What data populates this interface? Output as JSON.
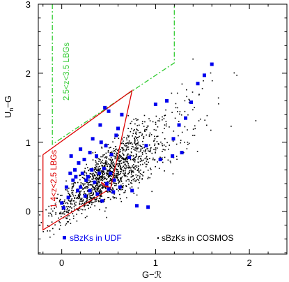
{
  "chart_data": {
    "type": "scatter",
    "xlabel": "G−ℛ",
    "ylabel_main": "U",
    "ylabel_sub": "n",
    "ylabel_rest": "−G",
    "xlim": [
      -0.25,
      2.4
    ],
    "ylim": [
      -0.62,
      3.0
    ],
    "x_ticks": [
      {
        "value": 0,
        "label": "0"
      },
      {
        "value": 1,
        "label": "1"
      },
      {
        "value": 2,
        "label": "2"
      }
    ],
    "y_ticks": [
      {
        "value": 0,
        "label": "0"
      },
      {
        "value": 1,
        "label": "1"
      },
      {
        "value": 2,
        "label": "2"
      },
      {
        "value": 3,
        "label": "3"
      }
    ],
    "grid": false,
    "series": [
      {
        "name": "sBzKs in COSMOS",
        "color": "#000000",
        "marker": "dot",
        "distribution": {
          "count": 1400,
          "ridge_slope": 0.95,
          "ridge_intercept": 0.05,
          "x_center": 0.5,
          "x_spread": 0.28,
          "y_scatter": 0.22
        }
      },
      {
        "name": "sBzKs in UDF",
        "color": "#0000ee",
        "marker": "square",
        "points": [
          [
            0.0,
            0.12
          ],
          [
            0.02,
            0.05
          ],
          [
            0.05,
            0.35
          ],
          [
            0.07,
            0.2
          ],
          [
            0.09,
            0.55
          ],
          [
            0.1,
            0.8
          ],
          [
            0.12,
            0.45
          ],
          [
            0.14,
            0.6
          ],
          [
            0.15,
            0.5
          ],
          [
            0.17,
            0.3
          ],
          [
            0.18,
            0.7
          ],
          [
            0.2,
            0.9
          ],
          [
            0.2,
            0.35
          ],
          [
            0.22,
            0.55
          ],
          [
            0.24,
            0.75
          ],
          [
            0.25,
            0.22
          ],
          [
            0.26,
            0.45
          ],
          [
            0.28,
            0.5
          ],
          [
            0.3,
            0.3
          ],
          [
            0.3,
            0.85
          ],
          [
            0.32,
            0.6
          ],
          [
            0.33,
            1.05
          ],
          [
            0.35,
            0.42
          ],
          [
            0.37,
            0.8
          ],
          [
            0.38,
            0.25
          ],
          [
            0.4,
            0.55
          ],
          [
            0.41,
            1.25
          ],
          [
            0.42,
            1.0
          ],
          [
            0.43,
            0.15
          ],
          [
            0.45,
            0.62
          ],
          [
            0.46,
            1.5
          ],
          [
            0.47,
            0.95
          ],
          [
            0.48,
            0.4
          ],
          [
            0.5,
            1.45
          ],
          [
            0.5,
            0.32
          ],
          [
            0.52,
            0.55
          ],
          [
            0.53,
            0.82
          ],
          [
            0.55,
            0.28
          ],
          [
            0.56,
            0.45
          ],
          [
            0.58,
            1.1
          ],
          [
            0.6,
            1.2
          ],
          [
            0.62,
            0.35
          ],
          [
            0.64,
            1.4
          ],
          [
            0.72,
            0.78
          ],
          [
            0.75,
            0.3
          ],
          [
            0.8,
            0.08
          ],
          [
            0.9,
            0.95
          ],
          [
            0.92,
            0.06
          ],
          [
            1.0,
            1.55
          ],
          [
            1.05,
            0.75
          ],
          [
            1.12,
            1.6
          ],
          [
            1.18,
            0.8
          ],
          [
            1.19,
            1.05
          ],
          [
            1.25,
            1.25
          ],
          [
            1.28,
            0.85
          ],
          [
            1.32,
            1.35
          ],
          [
            1.38,
            1.58
          ],
          [
            1.45,
            1.85
          ],
          [
            1.52,
            1.97
          ],
          [
            1.6,
            2.13
          ]
        ]
      }
    ],
    "regions": [
      {
        "label": "2.5<z<3.5 LBGs",
        "color": "#33cc33",
        "style": "dash-dot",
        "path": [
          [
            -0.1,
            3.0
          ],
          [
            -0.1,
            0.97
          ],
          [
            1.0,
            1.97
          ],
          [
            1.2,
            2.15
          ],
          [
            1.2,
            3.0
          ]
        ]
      },
      {
        "label": "1.4<z<2.5 LBGs",
        "color": "#dd0000",
        "style": "solid",
        "path": [
          [
            -0.2,
            0.82
          ],
          [
            0.75,
            1.75
          ],
          [
            0.52,
            0.33
          ],
          [
            -0.2,
            -0.27
          ],
          [
            -0.2,
            0.82
          ]
        ],
        "inner_path": [
          [
            0.52,
            0.33
          ],
          [
            0.45,
            0.37
          ],
          [
            0.42,
            0.42
          ],
          [
            0.52,
            0.33
          ]
        ]
      }
    ],
    "legend": [
      {
        "label": "sBzKs in UDF",
        "color": "#0000ee",
        "marker": "square"
      },
      {
        "label": "sBzKs in COSMOS",
        "color": "#000000",
        "marker": "dot"
      }
    ],
    "legend_placement": "bottom"
  }
}
